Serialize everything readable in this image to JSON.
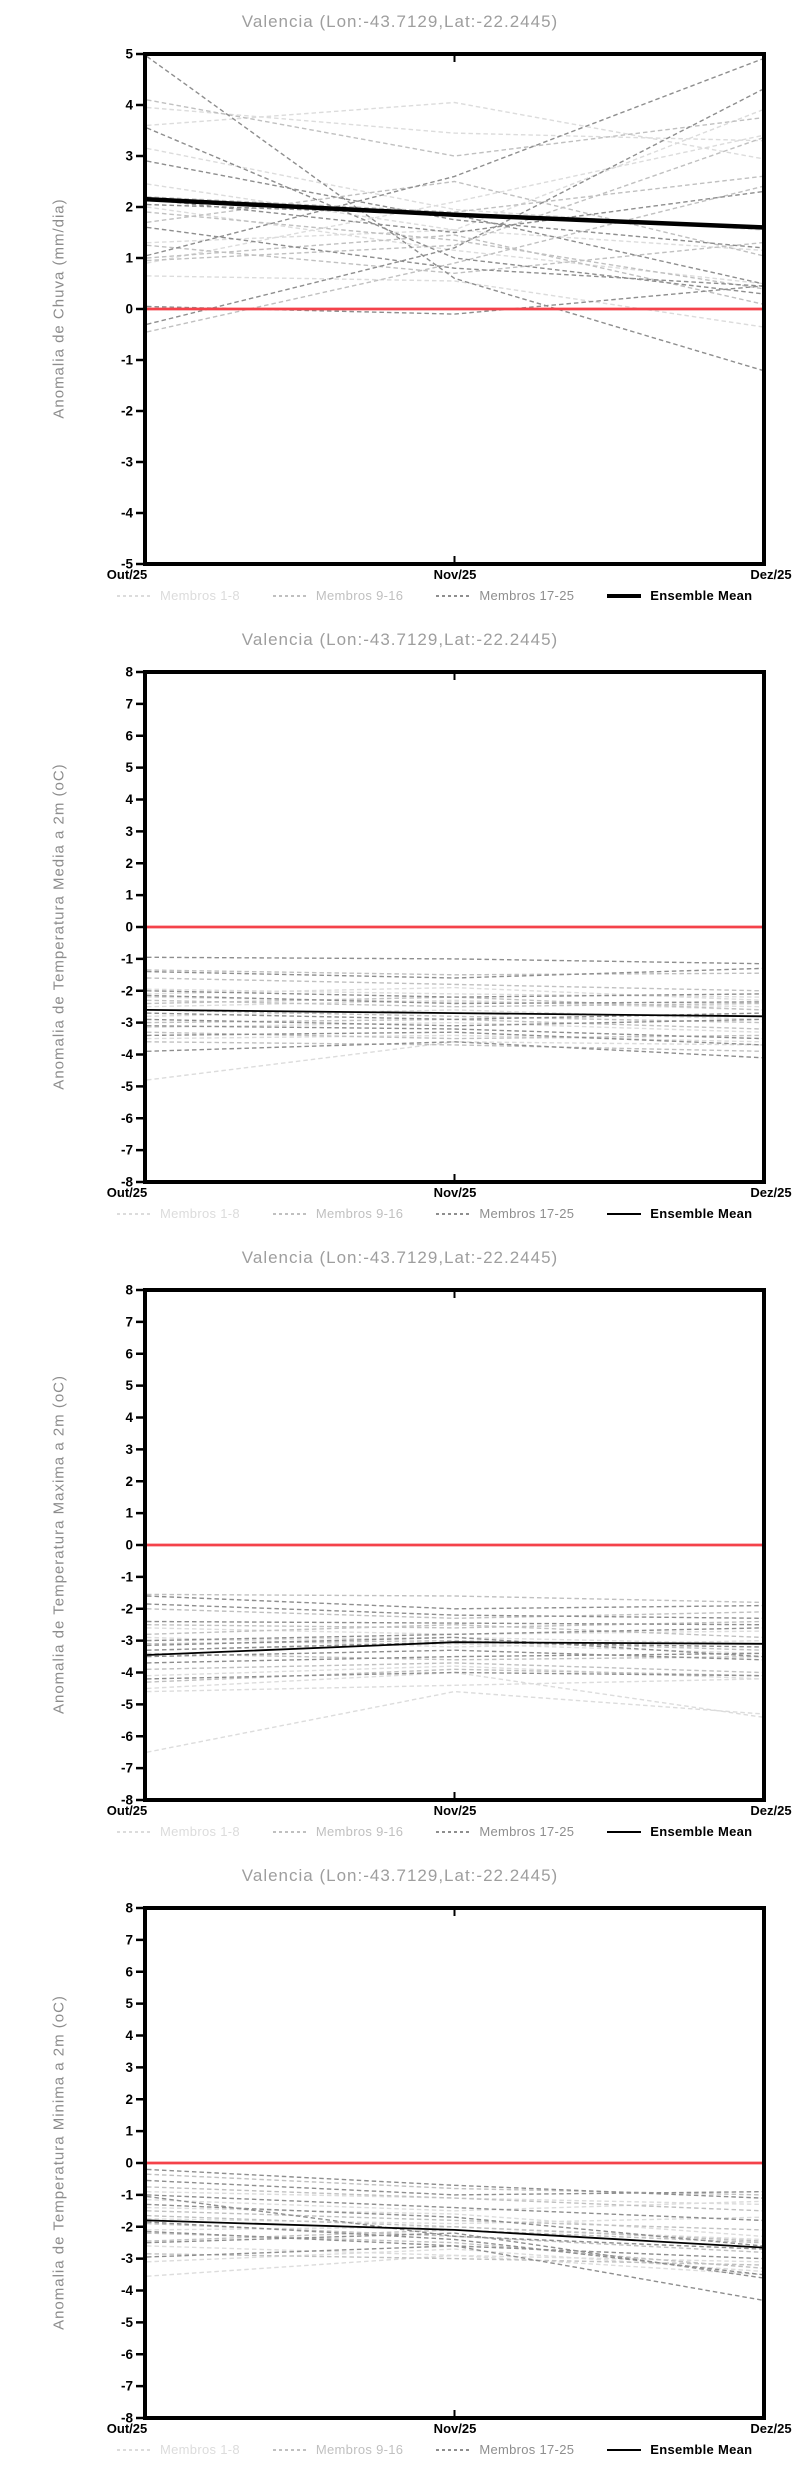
{
  "page": {
    "background": "#ffffff"
  },
  "colors": {
    "group1": "#dcdcdc",
    "group2": "#c0c0c0",
    "group3": "#8e8e8e",
    "mean": "#000000",
    "zero_line": "#f4424a",
    "frame": "#000000",
    "tick_label": "#000000",
    "title": "#9e9e9e",
    "axis_label": "#8c8c8c"
  },
  "legend": {
    "items": [
      {
        "label": "Membros 1-8",
        "group": "group1",
        "style": "dashed"
      },
      {
        "label": "Membros 9-16",
        "group": "group2",
        "style": "dashed"
      },
      {
        "label": "Membros 17-25",
        "group": "group3",
        "style": "dashed"
      },
      {
        "label": "Ensemble Mean",
        "group": "mean",
        "style": "solid"
      }
    ]
  },
  "chart_data": [
    {
      "type": "line",
      "title": "Valencia (Lon:-43.7129,Lat:-22.2445)",
      "ylabel": "Anomalia de Chuva (mm/dia)",
      "ylim": [
        -5,
        5
      ],
      "yticks": [
        5,
        4,
        3,
        2,
        1,
        0,
        -1,
        -2,
        -3,
        -4,
        -5
      ],
      "x_categories": [
        "Out/25",
        "Nov/25",
        "Dez/25"
      ],
      "zero_line": 0,
      "grid": false,
      "mean_linewidth": 4.5,
      "mean": [
        2.15,
        1.85,
        1.6
      ],
      "members_1_8": [
        [
          3.95,
          3.45,
          3.3
        ],
        [
          3.6,
          4.05,
          2.95
        ],
        [
          3.15,
          1.95,
          1.55
        ],
        [
          2.45,
          1.55,
          3.9
        ],
        [
          2.0,
          1.15,
          0.5
        ],
        [
          1.3,
          1.55,
          1.15
        ],
        [
          0.65,
          0.55,
          -0.35
        ],
        [
          0.9,
          2.1,
          3.4
        ]
      ],
      "members_9_16": [
        [
          4.1,
          3.0,
          3.75
        ],
        [
          2.2,
          1.9,
          2.6
        ],
        [
          1.9,
          1.35,
          0.4
        ],
        [
          1.25,
          0.7,
          1.3
        ],
        [
          1.0,
          1.45,
          0.1
        ],
        [
          -0.45,
          0.9,
          2.4
        ],
        [
          1.7,
          2.5,
          1.05
        ],
        [
          0.95,
          1.25,
          3.35
        ]
      ],
      "members_17_25": [
        [
          4.95,
          0.6,
          -1.2
        ],
        [
          3.55,
          1.0,
          0.3
        ],
        [
          2.9,
          1.75,
          1.2
        ],
        [
          1.05,
          2.6,
          4.9
        ],
        [
          -0.3,
          1.2,
          4.3
        ],
        [
          2.05,
          1.85,
          0.5
        ],
        [
          1.6,
          0.8,
          0.45
        ],
        [
          2.15,
          1.5,
          2.3
        ],
        [
          0.05,
          -0.1,
          0.45
        ]
      ]
    },
    {
      "type": "line",
      "title": "Valencia (Lon:-43.7129,Lat:-22.2445)",
      "ylabel": "Anomalia de Temperatura Media a 2m (oC)",
      "ylim": [
        -8,
        8
      ],
      "yticks": [
        8,
        7,
        6,
        5,
        4,
        3,
        2,
        1,
        0,
        -1,
        -2,
        -3,
        -4,
        -5,
        -6,
        -7,
        -8
      ],
      "x_categories": [
        "Out/25",
        "Nov/25",
        "Dez/25"
      ],
      "zero_line": 0,
      "grid": false,
      "mean_linewidth": 1.8,
      "mean": [
        -2.6,
        -2.7,
        -2.8
      ],
      "members_1_8": [
        [
          -1.95,
          -2.1,
          -2.2
        ],
        [
          -2.2,
          -2.35,
          -2.5
        ],
        [
          -2.5,
          -2.3,
          -2.6
        ],
        [
          -2.8,
          -2.6,
          -2.9
        ],
        [
          -3.15,
          -3.0,
          -3.3
        ],
        [
          -3.5,
          -3.4,
          -3.6
        ],
        [
          -4.8,
          -3.6,
          -3.7
        ],
        [
          -2.1,
          -1.9,
          -2.3
        ]
      ],
      "members_9_16": [
        [
          -1.35,
          -1.5,
          -1.45
        ],
        [
          -1.6,
          -1.8,
          -2.0
        ],
        [
          -2.3,
          -2.5,
          -2.4
        ],
        [
          -2.6,
          -2.8,
          -3.0
        ],
        [
          -3.0,
          -2.9,
          -3.2
        ],
        [
          -3.3,
          -3.5,
          -3.4
        ],
        [
          -3.6,
          -3.7,
          -3.9
        ],
        [
          -2.4,
          -2.2,
          -2.6
        ]
      ],
      "members_17_25": [
        [
          -0.95,
          -1.0,
          -1.15
        ],
        [
          -1.4,
          -1.6,
          -1.3
        ],
        [
          -2.0,
          -2.2,
          -2.1
        ],
        [
          -2.7,
          -2.9,
          -2.7
        ],
        [
          -3.1,
          -3.2,
          -3.5
        ],
        [
          -3.4,
          -3.3,
          -3.7
        ],
        [
          -3.9,
          -3.6,
          -4.1
        ],
        [
          -2.9,
          -3.1,
          -2.9
        ],
        [
          -2.15,
          -2.4,
          -2.35
        ]
      ]
    },
    {
      "type": "line",
      "title": "Valencia (Lon:-43.7129,Lat:-22.2445)",
      "ylabel": "Anomalia de Temperatura Maxima a 2m (oC)",
      "ylim": [
        -8,
        8
      ],
      "yticks": [
        8,
        7,
        6,
        5,
        4,
        3,
        2,
        1,
        0,
        -1,
        -2,
        -3,
        -4,
        -5,
        -6,
        -7,
        -8
      ],
      "x_categories": [
        "Out/25",
        "Nov/25",
        "Dez/25"
      ],
      "zero_line": 0,
      "grid": false,
      "mean_linewidth": 1.8,
      "mean": [
        -3.45,
        -3.05,
        -3.1
      ],
      "members_1_8": [
        [
          -2.6,
          -2.8,
          -2.7
        ],
        [
          -3.0,
          -2.9,
          -3.1
        ],
        [
          -3.3,
          -3.1,
          -3.4
        ],
        [
          -4.1,
          -3.8,
          -4.2
        ],
        [
          -4.5,
          -4.0,
          -5.4
        ],
        [
          -4.6,
          -4.4,
          -4.2
        ],
        [
          -6.5,
          -4.6,
          -5.3
        ],
        [
          -2.9,
          -3.2,
          -3.0
        ]
      ],
      "members_9_16": [
        [
          -1.55,
          -1.6,
          -1.8
        ],
        [
          -2.0,
          -2.3,
          -2.1
        ],
        [
          -2.5,
          -2.6,
          -2.4
        ],
        [
          -3.1,
          -3.0,
          -3.3
        ],
        [
          -3.4,
          -3.6,
          -3.5
        ],
        [
          -3.9,
          -3.7,
          -4.0
        ],
        [
          -4.3,
          -3.9,
          -4.1
        ],
        [
          -2.8,
          -2.5,
          -2.9
        ]
      ],
      "members_17_25": [
        [
          -1.6,
          -2.0,
          -1.9
        ],
        [
          -1.85,
          -2.2,
          -2.3
        ],
        [
          -2.4,
          -2.45,
          -2.5
        ],
        [
          -3.0,
          -2.8,
          -2.6
        ],
        [
          -3.3,
          -3.05,
          -3.2
        ],
        [
          -3.5,
          -3.3,
          -3.6
        ],
        [
          -3.7,
          -3.5,
          -3.4
        ],
        [
          -4.2,
          -4.0,
          -4.1
        ],
        [
          -3.15,
          -2.9,
          -3.5
        ]
      ]
    },
    {
      "type": "line",
      "title": "Valencia (Lon:-43.7129,Lat:-22.2445)",
      "ylabel": "Anomalia de Temperatura Minima a 2m (oC)",
      "ylim": [
        -8,
        8
      ],
      "yticks": [
        8,
        7,
        6,
        5,
        4,
        3,
        2,
        1,
        0,
        -1,
        -2,
        -3,
        -4,
        -5,
        -6,
        -7,
        -8
      ],
      "x_categories": [
        "Out/25",
        "Nov/25",
        "Dez/25"
      ],
      "zero_line": 0,
      "grid": false,
      "mean_linewidth": 1.8,
      "mean": [
        -1.8,
        -2.1,
        -2.65
      ],
      "members_1_8": [
        [
          -0.9,
          -1.1,
          -1.3
        ],
        [
          -1.4,
          -1.6,
          -2.3
        ],
        [
          -1.75,
          -1.9,
          -1.7
        ],
        [
          -2.1,
          -2.0,
          -2.4
        ],
        [
          -2.6,
          -2.9,
          -3.1
        ],
        [
          -3.1,
          -2.7,
          -3.4
        ],
        [
          -3.55,
          -2.9,
          -3.5
        ],
        [
          -1.15,
          -1.5,
          -1.2
        ]
      ],
      "members_9_16": [
        [
          -0.35,
          -0.8,
          -1.0
        ],
        [
          -0.75,
          -1.1,
          -1.5
        ],
        [
          -1.5,
          -1.8,
          -2.1
        ],
        [
          -1.9,
          -2.3,
          -2.8
        ],
        [
          -2.2,
          -2.5,
          -3.3
        ],
        [
          -2.45,
          -2.1,
          -2.5
        ],
        [
          -2.85,
          -3.0,
          -3.2
        ],
        [
          -1.65,
          -2.0,
          -2.45
        ]
      ],
      "members_17_25": [
        [
          -0.2,
          -0.7,
          -1.1
        ],
        [
          -0.55,
          -1.0,
          -0.9
        ],
        [
          -1.0,
          -1.4,
          -1.8
        ],
        [
          -1.3,
          -1.7,
          -2.6
        ],
        [
          -1.85,
          -2.4,
          -3.5
        ],
        [
          -2.15,
          -2.6,
          -3.0
        ],
        [
          -2.5,
          -2.2,
          -3.6
        ],
        [
          -2.95,
          -2.6,
          -4.3
        ],
        [
          -1.05,
          -2.3,
          -2.7
        ]
      ]
    }
  ]
}
